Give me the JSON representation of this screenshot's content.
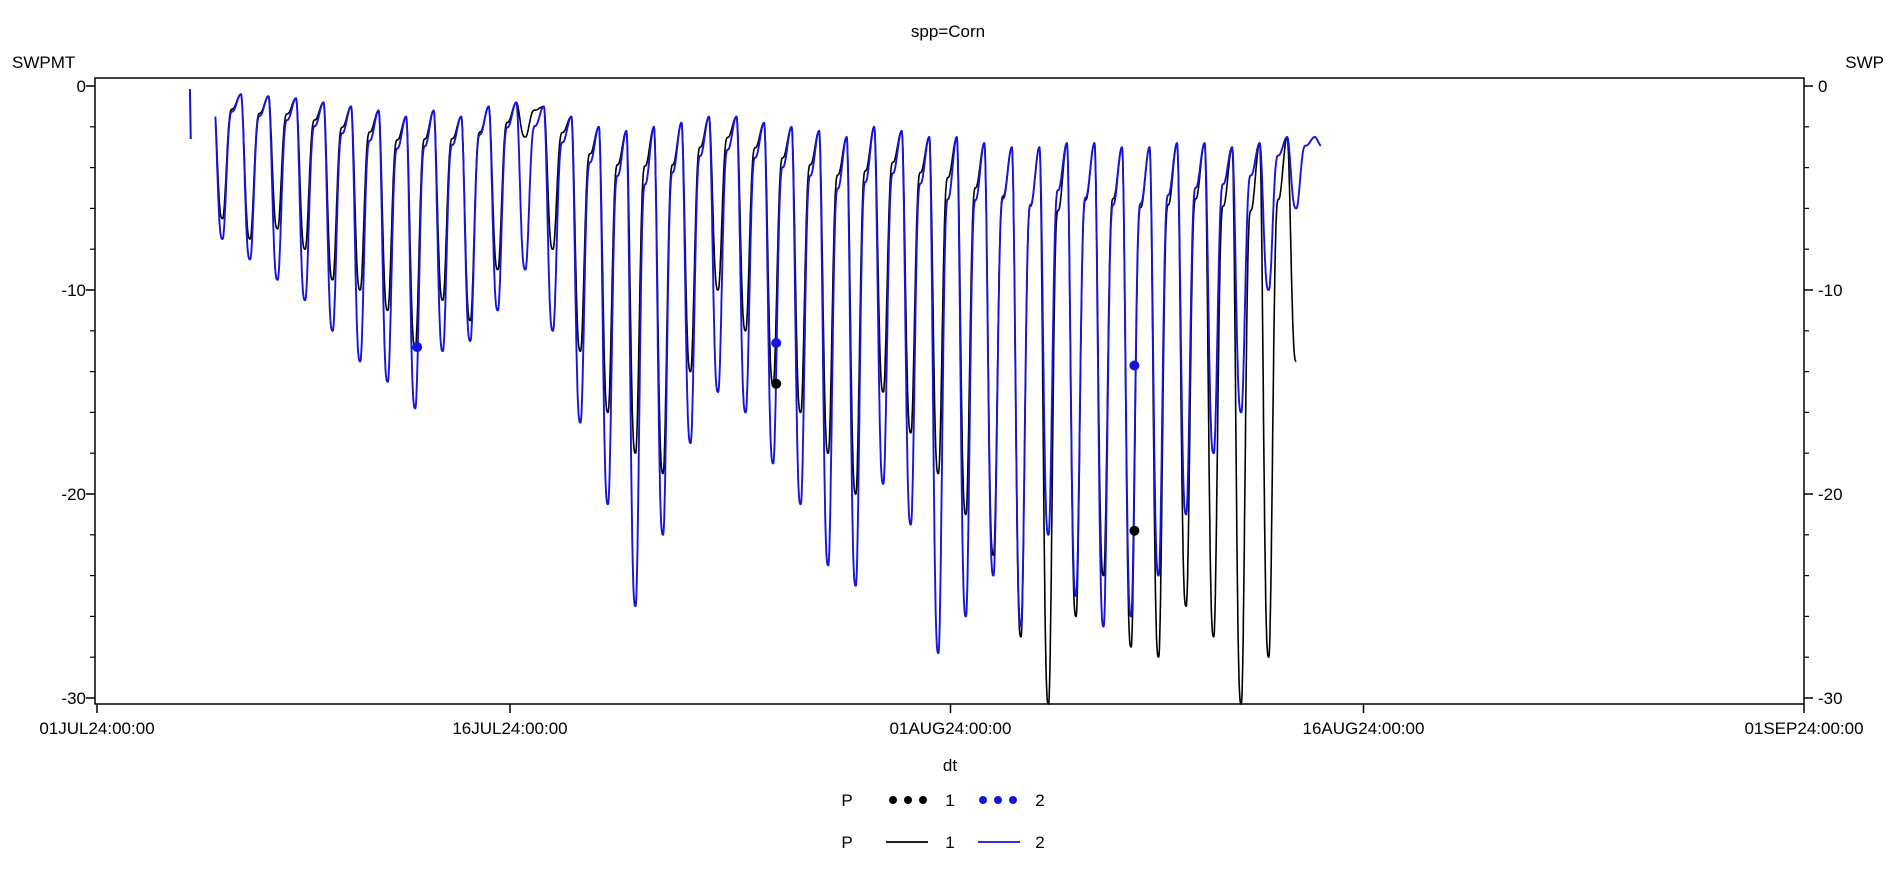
{
  "title": "spp=Corn",
  "colors": {
    "series1": "#000000",
    "series2": "#1515dd"
  },
  "axes": {
    "left": {
      "label": "SWPMT",
      "tick_labels": [
        "0",
        "-10",
        "-20",
        "-30"
      ],
      "tick_values": [
        0,
        -10,
        -20,
        -30
      ],
      "minor_step": 2
    },
    "right": {
      "label": "SWP",
      "tick_labels": [
        "0",
        "-10",
        "-20",
        "-30"
      ],
      "tick_values": [
        0,
        -10,
        -20,
        -30
      ]
    },
    "x": {
      "tick_labels": [
        "01JUL24:00:00",
        "16JUL24:00:00",
        "01AUG24:00:00",
        "16AUG24:00:00",
        "01SEP24:00:00"
      ],
      "tick_days": [
        0,
        15,
        31,
        46,
        62
      ]
    }
  },
  "legend": {
    "title": "dt",
    "rows": [
      {
        "var_label": "P",
        "type": "scatter",
        "entries": [
          {
            "label": "1",
            "color_key": "series1"
          },
          {
            "label": "2",
            "color_key": "series2"
          }
        ]
      },
      {
        "var_label": "P",
        "type": "line",
        "entries": [
          {
            "label": "1",
            "color_key": "series1"
          },
          {
            "label": "2",
            "color_key": "series2"
          }
        ]
      }
    ]
  },
  "chart_data": {
    "type": "line",
    "title": "spp=Corn",
    "xlabel": "dt",
    "ylabel_left": "SWPMT",
    "ylabel_right": "SWP",
    "x_unit": "days since 01JUL24:00:00",
    "xlim_days": [
      0,
      62
    ],
    "ylim": [
      -30,
      0
    ],
    "grid": false,
    "legend_position": "bottom-center",
    "series": [
      {
        "name": "P line, dt=1",
        "color_key": "series1",
        "t_range": [
          4.32,
          43.56
        ],
        "daily_envelope_day_peak_trough": [
          [
            4,
            -0.3,
            -6.5
          ],
          [
            5,
            -0.4,
            -7.5
          ],
          [
            6,
            -0.5,
            -7.0
          ],
          [
            7,
            -0.6,
            -8.0
          ],
          [
            8,
            -0.8,
            -9.5
          ],
          [
            9,
            -1.0,
            -10.0
          ],
          [
            10,
            -1.2,
            -11.0
          ],
          [
            11,
            -1.5,
            -12.8
          ],
          [
            12,
            -1.2,
            -10.5
          ],
          [
            13,
            -1.5,
            -11.5
          ],
          [
            14,
            -1.0,
            -9.0
          ],
          [
            15,
            -0.8,
            -2.5
          ],
          [
            16,
            -1.0,
            -8.0
          ],
          [
            17,
            -1.5,
            -13.0
          ],
          [
            18,
            -2.0,
            -16.0
          ],
          [
            19,
            -2.2,
            -18.0
          ],
          [
            20,
            -2.0,
            -19.0
          ],
          [
            21,
            -1.8,
            -14.0
          ],
          [
            22,
            -1.5,
            -10.0
          ],
          [
            23,
            -1.5,
            -12.0
          ],
          [
            24,
            -1.8,
            -14.6
          ],
          [
            25,
            -2.0,
            -16.0
          ],
          [
            26,
            -2.2,
            -18.0
          ],
          [
            27,
            -2.5,
            -20.0
          ],
          [
            28,
            -2.0,
            -15.0
          ],
          [
            29,
            -2.2,
            -17.0
          ],
          [
            30,
            -2.5,
            -19.0
          ],
          [
            31,
            -2.5,
            -21.0
          ],
          [
            32,
            -2.8,
            -23.0
          ],
          [
            33,
            -3.0,
            -27.0
          ],
          [
            34,
            -3.0,
            -30.3
          ],
          [
            35,
            -2.8,
            -26.0
          ],
          [
            36,
            -2.8,
            -24.0
          ],
          [
            37,
            -3.0,
            -27.5
          ],
          [
            38,
            -3.0,
            -28.0
          ],
          [
            39,
            -2.8,
            -25.5
          ],
          [
            40,
            -2.8,
            -27.0
          ],
          [
            41,
            -3.0,
            -30.3
          ],
          [
            42,
            -2.8,
            -28.0
          ],
          [
            43,
            -2.5,
            -13.5
          ],
          [
            44,
            -2.5,
            -13.5
          ]
        ]
      },
      {
        "name": "P line, dt=2",
        "color_key": "series2",
        "t_range": [
          4.3,
          44.45
        ],
        "daily_envelope_day_peak_trough": [
          [
            4,
            -0.3,
            -7.5
          ],
          [
            5,
            -0.4,
            -8.5
          ],
          [
            6,
            -0.5,
            -9.5
          ],
          [
            7,
            -0.6,
            -10.5
          ],
          [
            8,
            -0.8,
            -12.0
          ],
          [
            9,
            -1.0,
            -13.5
          ],
          [
            10,
            -1.2,
            -14.5
          ],
          [
            11,
            -1.5,
            -15.8
          ],
          [
            12,
            -1.2,
            -13.0
          ],
          [
            13,
            -1.5,
            -12.5
          ],
          [
            14,
            -1.0,
            -11.0
          ],
          [
            15,
            -0.8,
            -9.0
          ],
          [
            16,
            -1.0,
            -12.0
          ],
          [
            17,
            -1.5,
            -16.5
          ],
          [
            18,
            -2.0,
            -20.5
          ],
          [
            19,
            -2.2,
            -25.5
          ],
          [
            20,
            -2.0,
            -22.0
          ],
          [
            21,
            -1.8,
            -17.5
          ],
          [
            22,
            -1.5,
            -15.0
          ],
          [
            23,
            -1.5,
            -16.0
          ],
          [
            24,
            -1.8,
            -18.5
          ],
          [
            25,
            -2.0,
            -20.5
          ],
          [
            26,
            -2.2,
            -23.5
          ],
          [
            27,
            -2.5,
            -24.5
          ],
          [
            28,
            -2.0,
            -19.5
          ],
          [
            29,
            -2.2,
            -21.5
          ],
          [
            30,
            -2.5,
            -27.8
          ],
          [
            31,
            -2.5,
            -26.0
          ],
          [
            32,
            -2.8,
            -24.0
          ],
          [
            33,
            -3.0,
            -26.5
          ],
          [
            34,
            -3.0,
            -22.0
          ],
          [
            35,
            -2.8,
            -25.0
          ],
          [
            36,
            -2.8,
            -26.5
          ],
          [
            37,
            -3.0,
            -26.0
          ],
          [
            38,
            -3.0,
            -24.0
          ],
          [
            39,
            -2.8,
            -21.0
          ],
          [
            40,
            -2.8,
            -18.0
          ],
          [
            41,
            -3.0,
            -16.0
          ],
          [
            42,
            -2.8,
            -10.0
          ],
          [
            43,
            -2.5,
            -6.0
          ],
          [
            44,
            -2.5,
            -3.0
          ],
          [
            45,
            -2.5,
            -3.0
          ]
        ]
      }
    ],
    "isolated_segment": {
      "series": "P line, dt=2",
      "color_key": "series2",
      "day_from": 3.375,
      "day_to": 3.405,
      "value_from": -0.15,
      "value_to": -2.6
    },
    "scatter": [
      {
        "name": "P points, dt=1",
        "color_key": "series1",
        "points": [
          {
            "day": 24.67,
            "value": -14.6
          },
          {
            "day": 37.68,
            "value": -21.8
          }
        ]
      },
      {
        "name": "P points, dt=2",
        "color_key": "series2",
        "points": [
          {
            "day": 11.63,
            "value": -12.8
          },
          {
            "day": 24.67,
            "value": -12.6
          },
          {
            "day": 37.68,
            "value": -13.7
          }
        ]
      }
    ]
  }
}
